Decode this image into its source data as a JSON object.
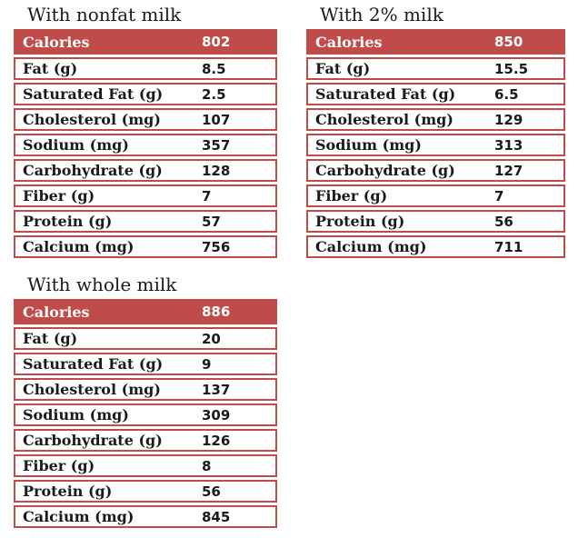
{
  "page": {
    "background": "#ffffff",
    "accent_color": "#C04C4A",
    "text_color": "#1a1a1a"
  },
  "tables": [
    {
      "id": "nonfat",
      "title": "With nonfat milk",
      "rows": [
        {
          "label": "Calories",
          "value": "802"
        },
        {
          "label": "Fat (g)",
          "value": "8.5"
        },
        {
          "label": "Saturated Fat (g)",
          "value": "2.5"
        },
        {
          "label": "Cholesterol (mg)",
          "value": "107"
        },
        {
          "label": "Sodium (mg)",
          "value": "357"
        },
        {
          "label": "Carbohydrate (g)",
          "value": "128"
        },
        {
          "label": "Fiber (g)",
          "value": "7"
        },
        {
          "label": "Protein (g)",
          "value": "57"
        },
        {
          "label": "Calcium (mg)",
          "value": "756"
        }
      ]
    },
    {
      "id": "two-percent",
      "title": "With 2% milk",
      "rows": [
        {
          "label": "Calories",
          "value": "850"
        },
        {
          "label": "Fat (g)",
          "value": "15.5"
        },
        {
          "label": "Saturated Fat (g)",
          "value": "6.5"
        },
        {
          "label": "Cholesterol (mg)",
          "value": "129"
        },
        {
          "label": "Sodium (mg)",
          "value": "313"
        },
        {
          "label": "Carbohydrate (g)",
          "value": "127"
        },
        {
          "label": "Fiber (g)",
          "value": "7"
        },
        {
          "label": "Protein (g)",
          "value": "56"
        },
        {
          "label": "Calcium (mg)",
          "value": "711"
        }
      ]
    },
    {
      "id": "whole",
      "title": "With whole milk",
      "rows": [
        {
          "label": "Calories",
          "value": "886"
        },
        {
          "label": "Fat (g)",
          "value": "20"
        },
        {
          "label": "Saturated Fat (g)",
          "value": "9"
        },
        {
          "label": "Cholesterol (mg)",
          "value": "137"
        },
        {
          "label": "Sodium (mg)",
          "value": "309"
        },
        {
          "label": "Carbohydrate (g)",
          "value": "126"
        },
        {
          "label": "Fiber (g)",
          "value": "8"
        },
        {
          "label": "Protein (g)",
          "value": "56"
        },
        {
          "label": "Calcium (mg)",
          "value": "845"
        }
      ]
    }
  ]
}
